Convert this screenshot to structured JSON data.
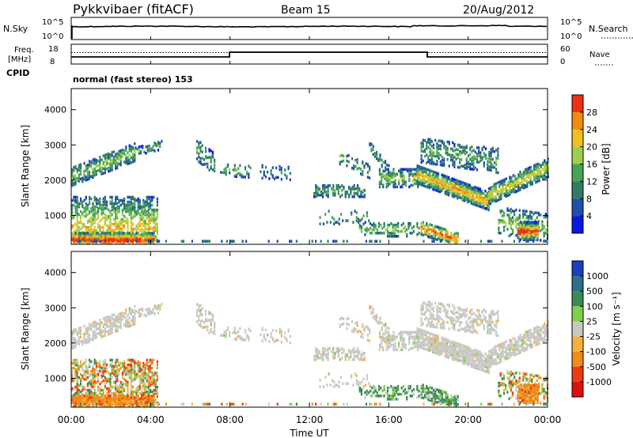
{
  "header": {
    "station": "Pykkvibaer (fitACF)",
    "beam": "Beam 15",
    "date": "20/Aug/2012"
  },
  "summary_panels": {
    "nsky": {
      "label": "N.Sky",
      "tick_top": "10^5",
      "tick_bottom": "10^0",
      "right_label": "N.Search",
      "right_tick_top": "10^5",
      "right_tick_bottom": "10^0"
    },
    "freq": {
      "label_line1": "Freq.",
      "label_line2": "[MHz]",
      "tick_top": "18",
      "tick_bottom": "8",
      "right_label": "Nave",
      "right_tick_top": "60",
      "right_tick_bottom": "0"
    },
    "cpid": {
      "label": "CPID",
      "value": "normal (fast stereo) 153"
    }
  },
  "chart_data": [
    {
      "type": "heatmap",
      "name": "Power",
      "ylabel": "Slant Range [km]",
      "yticks": [
        "1000",
        "2000",
        "3000",
        "4000"
      ],
      "ylim": [
        180,
        4600
      ],
      "colorbar_label": "Power [dB]",
      "colorbar_ticks": [
        "4",
        "8",
        "12",
        "16",
        "20",
        "24",
        "28"
      ],
      "colorbar_range": [
        0,
        30
      ],
      "colors": [
        "#0a18e6",
        "#1f4fa8",
        "#2e7d62",
        "#4aa35a",
        "#9fd04a",
        "#f0c020",
        "#f08a10",
        "#ee3010"
      ]
    },
    {
      "type": "heatmap",
      "name": "Velocity",
      "ylabel": "Slant Range [km]",
      "yticks": [
        "1000",
        "2000",
        "3000",
        "4000"
      ],
      "ylim": [
        180,
        4600
      ],
      "colorbar_label": "Velocity [m s⁻¹]",
      "colorbar_ticks": [
        "1000",
        "500",
        "100",
        "25",
        "-25",
        "-100",
        "-500",
        "-1000"
      ],
      "colors": [
        "#1a3fbf",
        "#2c6e8c",
        "#3a8a55",
        "#7fd04a",
        "#c8c8c4",
        "#f5b23a",
        "#f08a18",
        "#ee3a10",
        "#e01010"
      ]
    }
  ],
  "time_axis": {
    "xlabel": "Time UT",
    "ticks": [
      "00:00",
      "04:00",
      "08:00",
      "12:00",
      "16:00",
      "20:00",
      "00:00"
    ]
  }
}
